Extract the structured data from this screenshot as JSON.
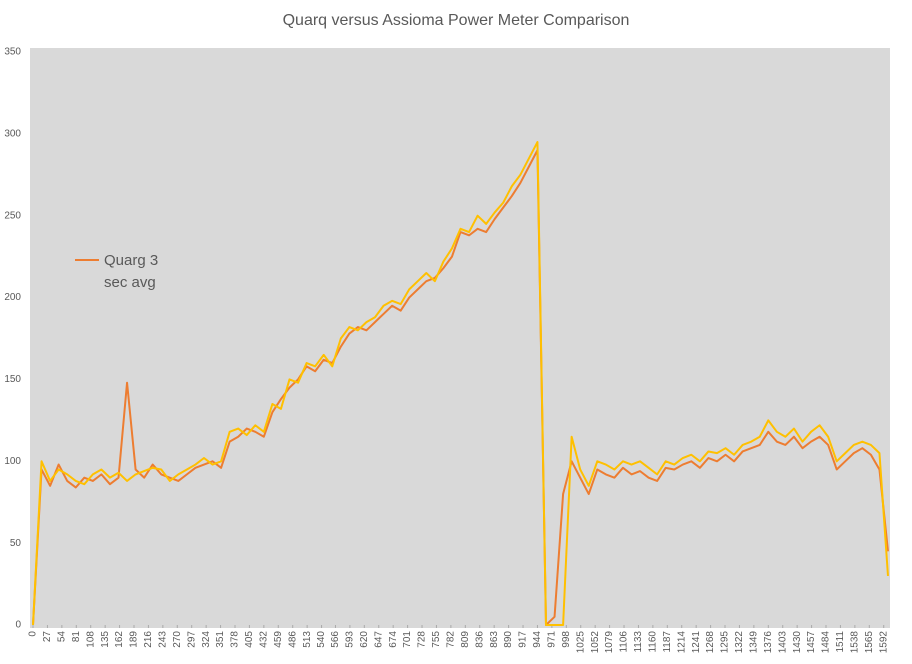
{
  "chart_data": {
    "type": "line",
    "title": "Quarq versus Assioma Power Meter Comparison",
    "x": [
      0,
      16,
      32,
      48,
      64,
      80,
      96,
      112,
      128,
      144,
      160,
      176,
      192,
      208,
      224,
      240,
      256,
      272,
      288,
      304,
      320,
      336,
      352,
      368,
      384,
      400,
      416,
      432,
      448,
      464,
      480,
      496,
      512,
      528,
      544,
      560,
      576,
      592,
      608,
      624,
      640,
      656,
      672,
      688,
      704,
      720,
      736,
      752,
      768,
      784,
      800,
      816,
      832,
      848,
      864,
      880,
      896,
      912,
      928,
      944,
      960,
      976,
      992,
      1008,
      1024,
      1040,
      1056,
      1072,
      1088,
      1104,
      1120,
      1136,
      1152,
      1168,
      1184,
      1200,
      1216,
      1232,
      1248,
      1264,
      1280,
      1296,
      1312,
      1328,
      1344,
      1360,
      1376,
      1392,
      1408,
      1424,
      1440,
      1456,
      1472,
      1488,
      1504,
      1520,
      1536,
      1552,
      1568,
      1584,
      1600
    ],
    "series": [
      {
        "name": "Quarg 3 sec avg",
        "color": "#ed7d31",
        "values": [
          0,
          95,
          85,
          98,
          88,
          84,
          90,
          88,
          92,
          86,
          90,
          148,
          95,
          90,
          98,
          92,
          90,
          88,
          92,
          96,
          98,
          100,
          96,
          112,
          115,
          120,
          118,
          115,
          130,
          138,
          145,
          150,
          158,
          155,
          162,
          160,
          170,
          178,
          182,
          180,
          185,
          190,
          195,
          192,
          200,
          205,
          210,
          212,
          218,
          225,
          240,
          238,
          242,
          240,
          248,
          255,
          262,
          270,
          280,
          290,
          0,
          5,
          80,
          100,
          90,
          80,
          95,
          92,
          90,
          96,
          92,
          94,
          90,
          88,
          96,
          95,
          98,
          100,
          96,
          102,
          100,
          104,
          100,
          106,
          108,
          110,
          118,
          112,
          110,
          115,
          108,
          112,
          115,
          110,
          95,
          100,
          105,
          108,
          104,
          95,
          45
        ]
      },
      {
        "color": "#ffc000",
        "values": [
          0,
          100,
          88,
          95,
          92,
          88,
          86,
          92,
          95,
          90,
          93,
          88,
          92,
          94,
          96,
          95,
          88,
          92,
          95,
          98,
          102,
          98,
          100,
          118,
          120,
          116,
          122,
          118,
          135,
          132,
          150,
          148,
          160,
          158,
          165,
          158,
          175,
          182,
          180,
          185,
          188,
          195,
          198,
          196,
          205,
          210,
          215,
          210,
          222,
          230,
          242,
          240,
          250,
          245,
          252,
          258,
          268,
          275,
          285,
          295,
          0,
          0,
          0,
          115,
          95,
          85,
          100,
          98,
          95,
          100,
          98,
          100,
          96,
          92,
          100,
          98,
          102,
          104,
          100,
          106,
          105,
          108,
          104,
          110,
          112,
          115,
          125,
          118,
          115,
          120,
          112,
          118,
          122,
          115,
          100,
          105,
          110,
          112,
          110,
          105,
          30
        ]
      }
    ],
    "xlim": [
      0,
      1600
    ],
    "xticks": [
      0,
      27,
      54,
      81,
      108,
      135,
      162,
      189,
      216,
      243,
      270,
      297,
      324,
      351,
      378,
      405,
      432,
      459,
      486,
      513,
      540,
      566,
      593,
      620,
      647,
      674,
      701,
      728,
      755,
      782,
      809,
      836,
      863,
      890,
      917,
      944,
      971,
      998,
      1025,
      1052,
      1079,
      1106,
      1133,
      1160,
      1187,
      1214,
      1241,
      1268,
      1295,
      1322,
      1349,
      1376,
      1403,
      1430,
      1457,
      1484,
      1511,
      1538,
      1565,
      1592
    ],
    "ylim": [
      0,
      350
    ],
    "yticks": [
      0,
      50,
      100,
      150,
      200,
      250,
      300,
      350
    ],
    "grid": false,
    "legend": "left"
  }
}
